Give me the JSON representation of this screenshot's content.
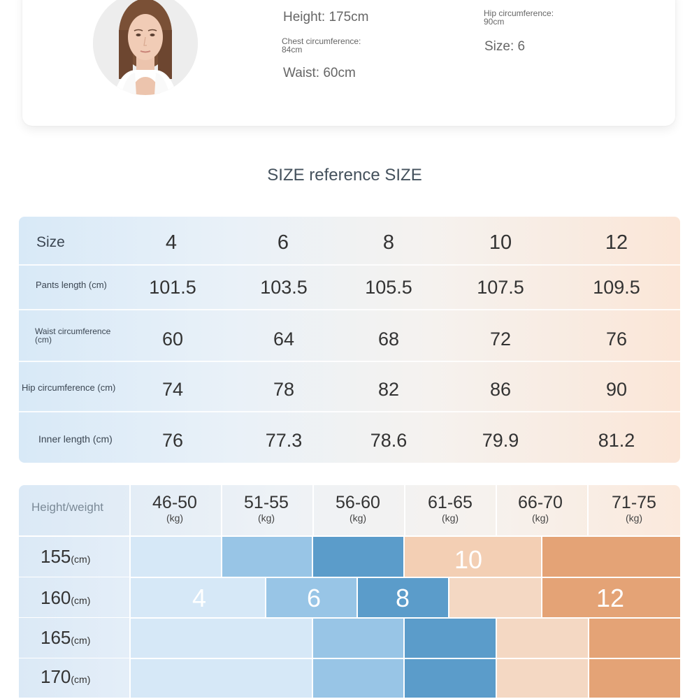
{
  "model": {
    "height": "Height: 175cm",
    "chest": "Chest circumference: 84cm",
    "waist": "Waist: 60cm",
    "hip": "Hip circumference: 90cm",
    "size": "Size: 6"
  },
  "section_title": "SIZE reference SIZE",
  "size_table": {
    "header_label": "Size",
    "sizes": [
      "4",
      "6",
      "8",
      "10",
      "12"
    ],
    "rows": [
      {
        "label": "Pants length (cm)",
        "values": [
          "101.5",
          "103.5",
          "105.5",
          "107.5",
          "109.5"
        ]
      },
      {
        "label": "Waist circumference (cm)",
        "values": [
          "60",
          "64",
          "68",
          "72",
          "76"
        ]
      },
      {
        "label": "Hip circumference (cm)",
        "values": [
          "74",
          "78",
          "82",
          "86",
          "90"
        ]
      },
      {
        "label": "Inner length (cm)",
        "values": [
          "76",
          "77.3",
          "78.6",
          "79.9",
          "81.2"
        ]
      }
    ]
  },
  "height_weight_chart": {
    "header_label": "Height/weight",
    "weight_ranges": [
      "46-50",
      "51-55",
      "56-60",
      "61-65",
      "66-70",
      "71-75"
    ],
    "weight_unit": "(kg)",
    "heights": [
      "155",
      "160",
      "165",
      "170"
    ],
    "height_unit": "(cm)",
    "size_labels": {
      "s4": "4",
      "s6": "6",
      "s8": "8",
      "s10": "10",
      "s12": "12"
    },
    "colors": {
      "size4": "#d6e8f7",
      "size6": "#98c5e6",
      "size8": "#5b9cca",
      "size10": "#f3cfb4",
      "size12": "#e4a376"
    }
  }
}
